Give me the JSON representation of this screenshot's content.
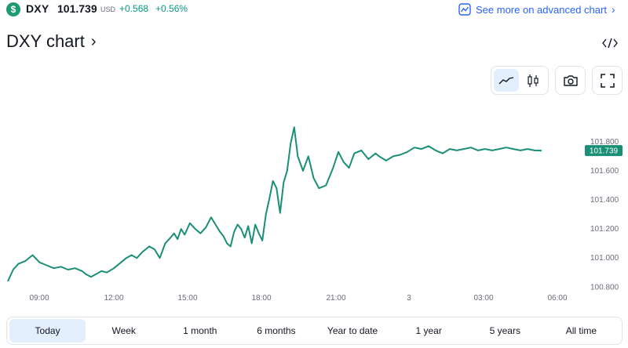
{
  "header": {
    "coin_glyph": "$",
    "symbol": "DXY",
    "price": "101.739",
    "currency": "USD",
    "change": "+0.568",
    "change_pct": "+0.56%",
    "advanced_link": "See more on advanced chart",
    "accent": "#2962ff",
    "up_color": "#089981"
  },
  "title": {
    "text": "DXY chart",
    "chevron": "›"
  },
  "toolbar": {
    "buttons": [
      "line-chart-icon",
      "candlestick-icon",
      "camera-icon",
      "fullscreen-icon"
    ],
    "active": "line-chart-icon"
  },
  "chart_data": {
    "type": "line",
    "title": "",
    "xlabel": "",
    "ylabel": "",
    "line_color": "#1a8f77",
    "ylim": [
      100.78,
      101.95
    ],
    "y_ticks": [
      "101.800",
      "101.600",
      "101.400",
      "101.200",
      "101.000",
      "100.800"
    ],
    "x_ticks": [
      "09:00",
      "12:00",
      "15:00",
      "18:00",
      "21:00",
      "3",
      "03:00",
      "06:00"
    ],
    "last_value_label": "101.739",
    "last_value": 101.739,
    "series": [
      {
        "x": [
          0,
          0.3,
          0.6,
          1.0,
          1.4,
          1.8,
          2.2,
          2.6,
          3.0,
          3.4,
          3.8,
          4.2,
          4.4,
          4.7,
          5.0,
          5.3,
          5.6,
          6.0,
          6.4,
          6.7,
          7.0,
          7.3,
          7.6,
          8.0,
          8.3,
          8.6,
          8.9,
          9.2,
          9.4,
          9.6,
          9.8,
          10.0,
          10.3,
          10.6,
          10.9,
          11.2,
          11.5,
          11.8,
          12.0,
          12.2,
          12.4,
          12.6,
          12.8,
          13.0,
          13.2,
          13.4,
          13.6,
          13.8,
          14.0,
          14.2,
          14.4,
          14.6,
          14.8,
          15.0,
          15.2,
          15.4,
          15.6,
          15.8,
          16.0,
          16.2,
          16.4,
          16.7,
          17.0,
          17.3,
          17.6,
          18.0,
          18.4,
          18.7,
          19.0,
          19.3,
          19.6,
          20.0,
          20.4,
          20.8,
          21.0,
          21.4,
          21.8,
          22.2,
          22.6,
          23.0,
          23.4,
          23.8,
          24.2,
          24.6,
          25.0,
          25.4,
          25.8,
          26.2,
          26.6,
          27.0,
          27.4,
          27.8,
          28.2,
          28.6,
          29.0,
          29.4,
          29.8,
          30.2
        ],
        "y": [
          100.84,
          100.92,
          100.96,
          100.98,
          101.02,
          100.97,
          100.95,
          100.93,
          100.94,
          100.92,
          100.93,
          100.91,
          100.89,
          100.87,
          100.89,
          100.91,
          100.9,
          100.93,
          100.97,
          101.0,
          101.02,
          101.0,
          101.04,
          101.08,
          101.06,
          101.0,
          101.1,
          101.14,
          101.17,
          101.13,
          101.2,
          101.16,
          101.24,
          101.2,
          101.17,
          101.21,
          101.28,
          101.22,
          101.18,
          101.15,
          101.1,
          101.08,
          101.18,
          101.23,
          101.2,
          101.14,
          101.22,
          101.1,
          101.23,
          101.17,
          101.12,
          101.3,
          101.41,
          101.53,
          101.48,
          101.31,
          101.52,
          101.6,
          101.79,
          101.9,
          101.7,
          101.6,
          101.7,
          101.55,
          101.48,
          101.5,
          101.62,
          101.73,
          101.66,
          101.62,
          101.72,
          101.74,
          101.68,
          101.72,
          101.7,
          101.67,
          101.7,
          101.71,
          101.73,
          101.76,
          101.75,
          101.77,
          101.74,
          101.72,
          101.75,
          101.74,
          101.75,
          101.76,
          101.74,
          101.75,
          101.74,
          101.75,
          101.76,
          101.75,
          101.74,
          101.75,
          101.74,
          101.739
        ]
      }
    ]
  },
  "ranges": {
    "items": [
      "Today",
      "Week",
      "1 month",
      "6 months",
      "Year to date",
      "1 year",
      "5 years",
      "All time"
    ],
    "active": "Today"
  }
}
